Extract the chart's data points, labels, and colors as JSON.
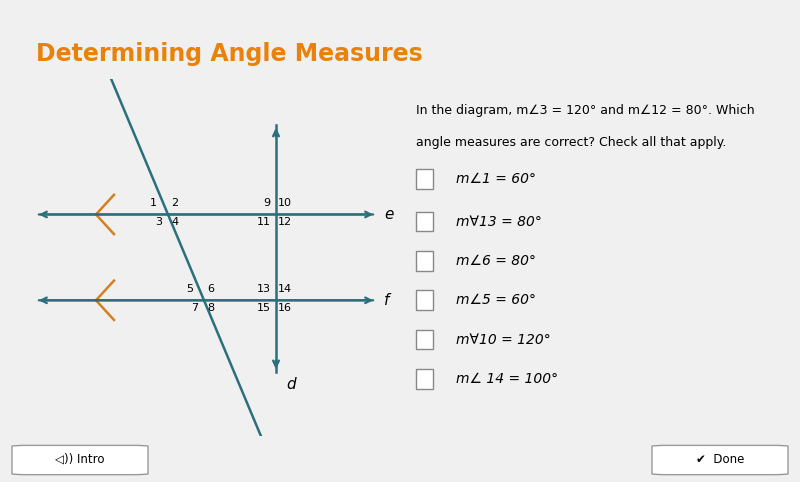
{
  "title": "Determining Angle Measures",
  "title_color": "#E8820C",
  "bg_color": "#ffffff",
  "teal_color": "#2B6F7C",
  "orange_tick": "#D48020",
  "purple_bar": "#6B3FA0",
  "description_line1": "In the diagram, m∠3 = 120° and m∠12 = 80°. Which",
  "description_line2": "angle measures are correct? Check all that apply.",
  "options": [
    "m∠1 = 60°",
    "m∀13 = 80°",
    "m∠6 = 80°",
    "m∠5 = 60°",
    "m∀10 = 120°",
    "m∠ 14 = 100°"
  ]
}
